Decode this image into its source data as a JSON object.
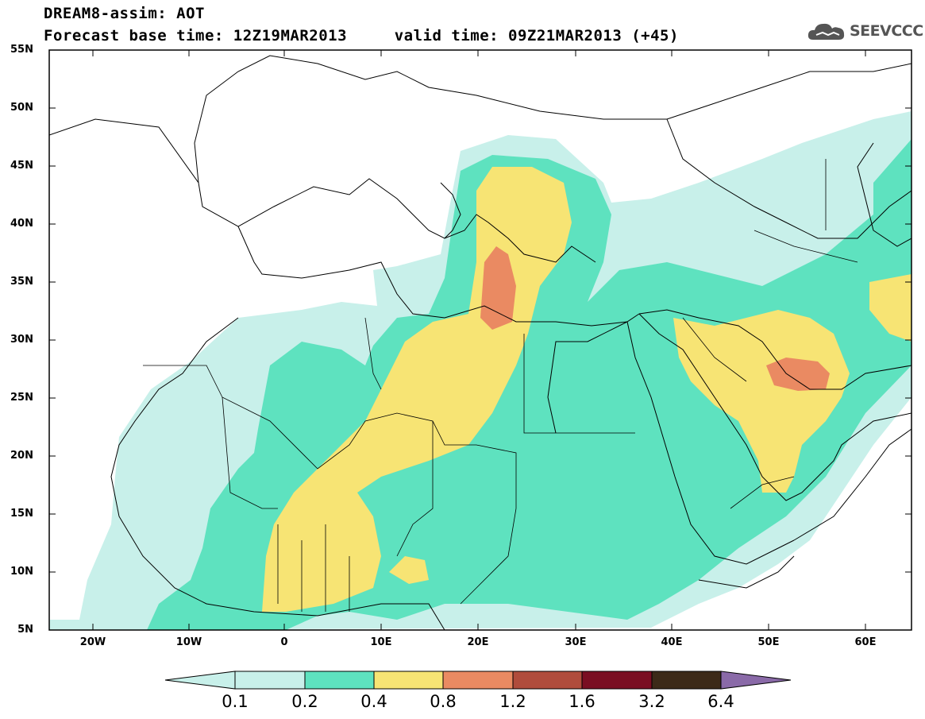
{
  "header": {
    "title_line1": "DREAM8-assim: AOT",
    "title_line2": "Forecast base time: 12Z19MAR2013     valid time: 09Z21MAR2013 (+45)"
  },
  "logo": {
    "icon": "cloud-icon",
    "text": "SEEVCCC"
  },
  "map": {
    "lat_labels": [
      "55N",
      "50N",
      "45N",
      "40N",
      "35N",
      "30N",
      "25N",
      "20N",
      "15N",
      "10N",
      "5N"
    ],
    "lon_labels": [
      "20W",
      "10W",
      "0",
      "10E",
      "20E",
      "30E",
      "40E",
      "50E",
      "60E"
    ],
    "colors": {
      "c01": "#c8f0ea",
      "c02": "#5ee2bf",
      "c04": "#f7e474",
      "c08": "#ea8a62",
      "c12": "#b04c3c",
      "c16": "#7a0e22",
      "c32": "#3c2a18",
      "c64": "#8a6aa8"
    }
  },
  "colorbar": {
    "labels": [
      "0.1",
      "0.2",
      "0.4",
      "0.8",
      "1.2",
      "1.6",
      "3.2",
      "6.4"
    ]
  }
}
